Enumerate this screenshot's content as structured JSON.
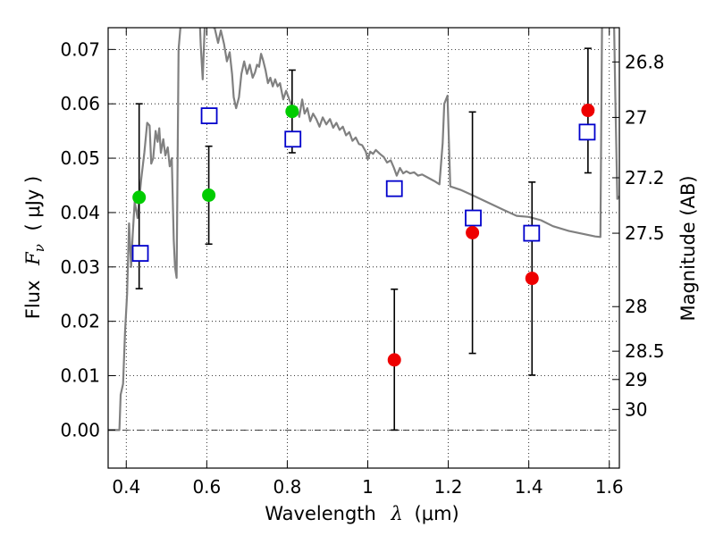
{
  "chart_data": {
    "type": "scatter",
    "xlabel_prefix": "Wavelength",
    "xlabel_symbol": "λ",
    "xlabel_unit": "(μm)",
    "ylabel_prefix": "Flux",
    "ylabel_symbol": "F",
    "ylabel_sub": "ν",
    "ylabel_unit": "( μJy )",
    "y2label": "Magnitude (AB)",
    "xlim": [
      0.355,
      1.625
    ],
    "ylim": [
      -0.007,
      0.074
    ],
    "grid": true,
    "x_ticks": [
      {
        "value": 0.4,
        "label": "0.4"
      },
      {
        "value": 0.6,
        "label": "0.6"
      },
      {
        "value": 0.8,
        "label": "0.8"
      },
      {
        "value": 1.0,
        "label": "1"
      },
      {
        "value": 1.2,
        "label": "1.2"
      },
      {
        "value": 1.4,
        "label": "1.4"
      },
      {
        "value": 1.6,
        "label": "1.6"
      }
    ],
    "y_ticks": [
      {
        "value": 0.0,
        "label": "0.00"
      },
      {
        "value": 0.01,
        "label": "0.01"
      },
      {
        "value": 0.02,
        "label": "0.02"
      },
      {
        "value": 0.03,
        "label": "0.03"
      },
      {
        "value": 0.04,
        "label": "0.04"
      },
      {
        "value": 0.05,
        "label": "0.05"
      },
      {
        "value": 0.06,
        "label": "0.06"
      },
      {
        "value": 0.07,
        "label": "0.07"
      }
    ],
    "mag_ticks": [
      {
        "label": "26.8",
        "flux": 0.0677
      },
      {
        "label": "27",
        "flux": 0.0575
      },
      {
        "label": "27.2",
        "flux": 0.0464
      },
      {
        "label": "27.5",
        "flux": 0.0362
      },
      {
        "label": "28",
        "flux": 0.0227
      },
      {
        "label": "28.5",
        "flux": 0.0145
      },
      {
        "label": "29",
        "flux": 0.0093
      },
      {
        "label": "30",
        "flux": 0.0038
      }
    ],
    "series": [
      {
        "marker": "hollow-square",
        "color": "#0000cc",
        "points": [
          {
            "x": 0.435,
            "y": 0.0325
          },
          {
            "x": 0.606,
            "y": 0.0578
          },
          {
            "x": 0.814,
            "y": 0.0535
          },
          {
            "x": 1.066,
            "y": 0.0444
          },
          {
            "x": 1.262,
            "y": 0.039
          },
          {
            "x": 1.407,
            "y": 0.0362
          },
          {
            "x": 1.545,
            "y": 0.0548
          }
        ]
      },
      {
        "marker": "filled-circle",
        "color": "#00cc00",
        "points": [
          {
            "x": 0.432,
            "y": 0.0428,
            "err": [
              0.026,
              0.06
            ]
          },
          {
            "x": 0.605,
            "y": 0.0432,
            "err": [
              0.0342,
              0.0522
            ]
          },
          {
            "x": 0.812,
            "y": 0.0586,
            "err": [
              0.051,
              0.0662
            ]
          }
        ]
      },
      {
        "marker": "filled-circle",
        "color": "#ee0000",
        "points": [
          {
            "x": 1.066,
            "y": 0.0129,
            "err": [
              0.0,
              0.0259
            ]
          },
          {
            "x": 1.26,
            "y": 0.0363,
            "err": [
              0.0141,
              0.0585
            ]
          },
          {
            "x": 1.408,
            "y": 0.0279,
            "err": [
              0.0101,
              0.0456
            ]
          },
          {
            "x": 1.547,
            "y": 0.0588,
            "err": [
              0.0473,
              0.0702
            ]
          }
        ]
      }
    ],
    "model_spectrum": {
      "color": "#808080",
      "points": [
        [
          0.355,
          0.0
        ],
        [
          0.383,
          0.0
        ],
        [
          0.386,
          0.0065
        ],
        [
          0.392,
          0.0085
        ],
        [
          0.397,
          0.018
        ],
        [
          0.402,
          0.025
        ],
        [
          0.407,
          0.038
        ],
        [
          0.412,
          0.03
        ],
        [
          0.416,
          0.036
        ],
        [
          0.421,
          0.042
        ],
        [
          0.428,
          0.039
        ],
        [
          0.437,
          0.046
        ],
        [
          0.445,
          0.051
        ],
        [
          0.452,
          0.0565
        ],
        [
          0.458,
          0.056
        ],
        [
          0.462,
          0.049
        ],
        [
          0.467,
          0.05
        ],
        [
          0.473,
          0.055
        ],
        [
          0.478,
          0.053
        ],
        [
          0.482,
          0.0555
        ],
        [
          0.486,
          0.051
        ],
        [
          0.492,
          0.0535
        ],
        [
          0.497,
          0.0505
        ],
        [
          0.503,
          0.052
        ],
        [
          0.508,
          0.0485
        ],
        [
          0.513,
          0.05
        ],
        [
          0.518,
          0.035
        ],
        [
          0.521,
          0.03
        ],
        [
          0.525,
          0.028
        ],
        [
          0.53,
          0.07
        ],
        [
          0.535,
          0.0745
        ],
        [
          0.583,
          0.0745
        ],
        [
          0.585,
          0.0708
        ],
        [
          0.59,
          0.0645
        ],
        [
          0.595,
          0.0745
        ],
        [
          0.612,
          0.0745
        ],
        [
          0.62,
          0.0738
        ],
        [
          0.628,
          0.0712
        ],
        [
          0.635,
          0.0735
        ],
        [
          0.643,
          0.071
        ],
        [
          0.65,
          0.0678
        ],
        [
          0.657,
          0.0695
        ],
        [
          0.663,
          0.0654
        ],
        [
          0.667,
          0.0612
        ],
        [
          0.673,
          0.0592
        ],
        [
          0.68,
          0.0612
        ],
        [
          0.686,
          0.0655
        ],
        [
          0.693,
          0.0678
        ],
        [
          0.7,
          0.0655
        ],
        [
          0.707,
          0.0672
        ],
        [
          0.714,
          0.0648
        ],
        [
          0.72,
          0.0658
        ],
        [
          0.725,
          0.0672
        ],
        [
          0.73,
          0.0668
        ],
        [
          0.735,
          0.0692
        ],
        [
          0.74,
          0.068
        ],
        [
          0.746,
          0.0662
        ],
        [
          0.752,
          0.0638
        ],
        [
          0.758,
          0.0648
        ],
        [
          0.764,
          0.0632
        ],
        [
          0.77,
          0.0645
        ],
        [
          0.776,
          0.0632
        ],
        [
          0.782,
          0.0638
        ],
        [
          0.79,
          0.0608
        ],
        [
          0.797,
          0.0624
        ],
        [
          0.803,
          0.0612
        ],
        [
          0.81,
          0.0598
        ],
        [
          0.817,
          0.0582
        ],
        [
          0.823,
          0.0594
        ],
        [
          0.83,
          0.0576
        ],
        [
          0.837,
          0.0608
        ],
        [
          0.843,
          0.0582
        ],
        [
          0.85,
          0.0592
        ],
        [
          0.857,
          0.0568
        ],
        [
          0.864,
          0.0582
        ],
        [
          0.872,
          0.0572
        ],
        [
          0.88,
          0.0558
        ],
        [
          0.888,
          0.0575
        ],
        [
          0.897,
          0.0562
        ],
        [
          0.906,
          0.0572
        ],
        [
          0.914,
          0.0556
        ],
        [
          0.922,
          0.0565
        ],
        [
          0.93,
          0.0552
        ],
        [
          0.938,
          0.0558
        ],
        [
          0.946,
          0.0542
        ],
        [
          0.954,
          0.0548
        ],
        [
          0.962,
          0.0532
        ],
        [
          0.97,
          0.0538
        ],
        [
          0.978,
          0.0526
        ],
        [
          0.986,
          0.0524
        ],
        [
          0.995,
          0.0512
        ],
        [
          1.0,
          0.0498
        ],
        [
          1.006,
          0.0512
        ],
        [
          1.013,
          0.0508
        ],
        [
          1.02,
          0.0515
        ],
        [
          1.03,
          0.0508
        ],
        [
          1.04,
          0.0502
        ],
        [
          1.048,
          0.0492
        ],
        [
          1.057,
          0.0496
        ],
        [
          1.065,
          0.0482
        ],
        [
          1.072,
          0.0468
        ],
        [
          1.08,
          0.0482
        ],
        [
          1.088,
          0.0472
        ],
        [
          1.096,
          0.0476
        ],
        [
          1.105,
          0.0472
        ],
        [
          1.115,
          0.0474
        ],
        [
          1.125,
          0.0468
        ],
        [
          1.135,
          0.047
        ],
        [
          1.15,
          0.0464
        ],
        [
          1.165,
          0.0458
        ],
        [
          1.178,
          0.0452
        ],
        [
          1.186,
          0.0528
        ],
        [
          1.19,
          0.06
        ],
        [
          1.198,
          0.0615
        ],
        [
          1.205,
          0.0448
        ],
        [
          1.23,
          0.0442
        ],
        [
          1.26,
          0.0432
        ],
        [
          1.3,
          0.0418
        ],
        [
          1.34,
          0.0404
        ],
        [
          1.37,
          0.0394
        ],
        [
          1.4,
          0.0392
        ],
        [
          1.43,
          0.0386
        ],
        [
          1.46,
          0.0375
        ],
        [
          1.5,
          0.0366
        ],
        [
          1.54,
          0.036
        ],
        [
          1.565,
          0.0356
        ],
        [
          1.578,
          0.0355
        ],
        [
          1.582,
          0.0745
        ],
        [
          1.612,
          0.0745
        ],
        [
          1.615,
          0.061
        ],
        [
          1.62,
          0.0425
        ],
        [
          1.625,
          0.043
        ]
      ]
    }
  }
}
